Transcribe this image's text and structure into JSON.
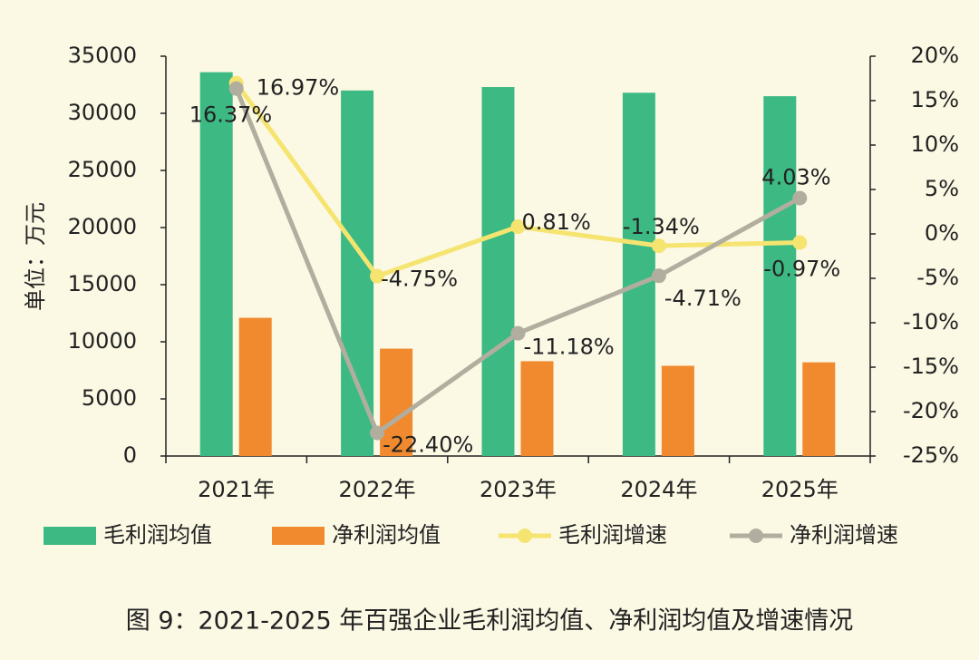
{
  "chart_data": {
    "type": "bar-line",
    "y_label": "单位：万元",
    "caption": "图 9：2021-2025 年百强企业毛利润均值、净利润均值及增速情况",
    "categories": [
      "2021年",
      "2022年",
      "2023年",
      "2024年",
      "2025年"
    ],
    "series": [
      {
        "name": "毛利润均值",
        "type": "bar",
        "color": "#3dba83",
        "values": [
          33600,
          32000,
          32300,
          31800,
          31500
        ]
      },
      {
        "name": "净利润均值",
        "type": "bar",
        "color": "#f18a2e",
        "values": [
          12100,
          9400,
          8300,
          7900,
          8200
        ]
      },
      {
        "name": "毛利润增速",
        "type": "line",
        "axis": "y2",
        "color": "#f6e470",
        "values": [
          16.97,
          -4.75,
          0.81,
          -1.34,
          -0.97
        ],
        "value_labels": [
          "16.97%",
          "-4.75%",
          "0.81%",
          "-1.34%",
          "-0.97%"
        ]
      },
      {
        "name": "净利润增速",
        "type": "line",
        "axis": "y2",
        "color": "#b1ae9f",
        "values": [
          16.37,
          -22.4,
          -11.18,
          -4.71,
          4.03
        ],
        "value_labels": [
          "16.37%",
          "-22.40%",
          "-11.18%",
          "-4.71%",
          "4.03%"
        ]
      }
    ],
    "ylim": [
      0,
      35000
    ],
    "yticks": [
      0,
      5000,
      10000,
      15000,
      20000,
      25000,
      30000,
      35000
    ],
    "y2lim": [
      -25,
      20
    ],
    "y2ticks": [
      {
        "value": -25,
        "label": "-25%"
      },
      {
        "value": -20,
        "label": "-20%"
      },
      {
        "value": -15,
        "label": "-15%"
      },
      {
        "value": -10,
        "label": "-10%"
      },
      {
        "value": -5,
        "label": "-5%"
      },
      {
        "value": 0,
        "label": "0%"
      },
      {
        "value": 5,
        "label": "5%"
      },
      {
        "value": 10,
        "label": "10%"
      },
      {
        "value": 15,
        "label": "15%"
      },
      {
        "value": 20,
        "label": "20%"
      }
    ]
  }
}
